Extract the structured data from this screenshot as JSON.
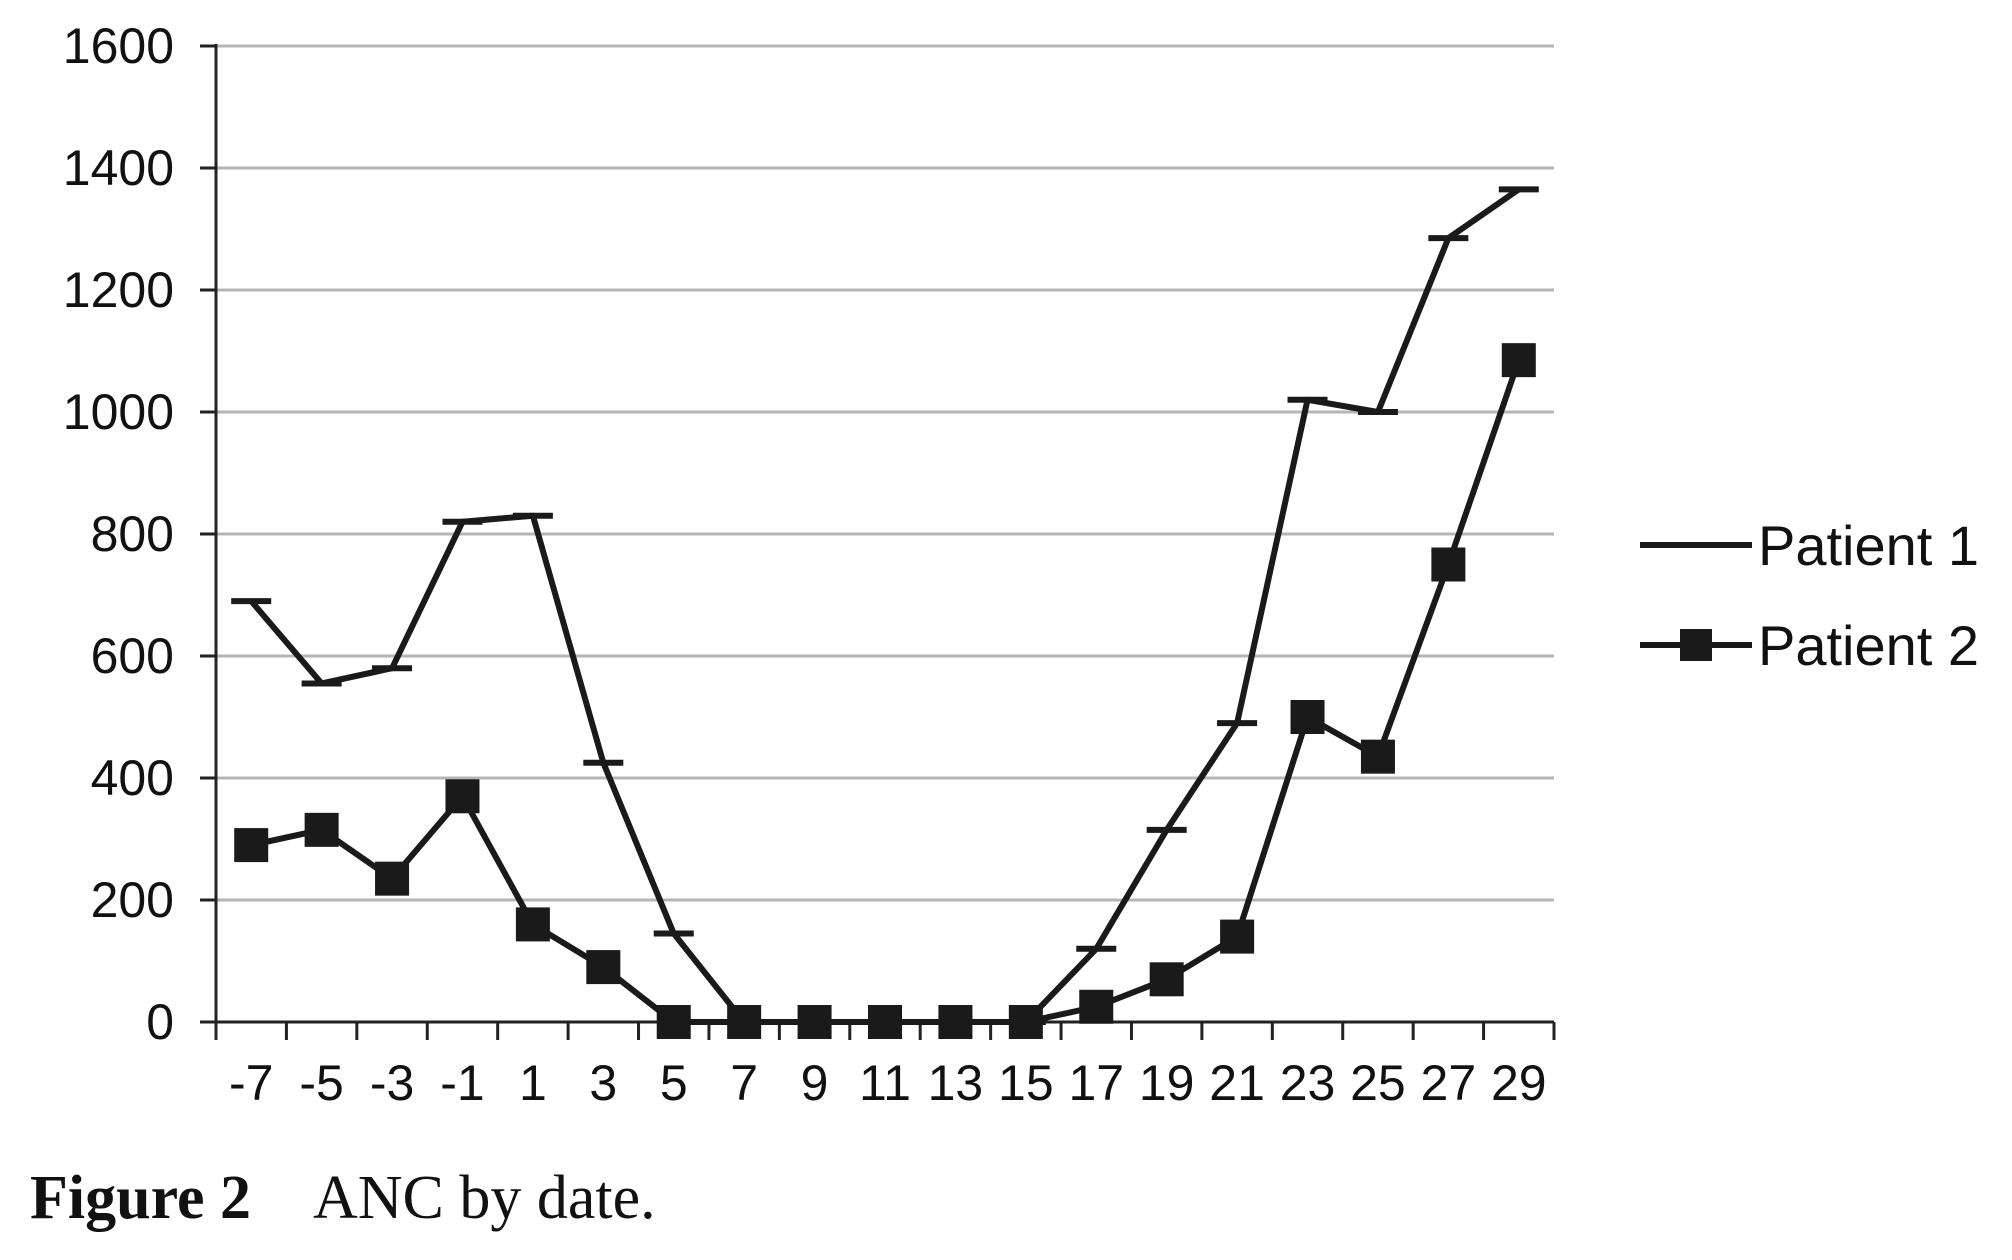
{
  "caption": {
    "label": "Figure 2",
    "text": "ANC by date."
  },
  "chart_data": {
    "type": "line",
    "title": "",
    "xlabel": "",
    "ylabel": "",
    "x": [
      -7,
      -5,
      -3,
      -1,
      1,
      3,
      5,
      7,
      9,
      11,
      13,
      15,
      17,
      19,
      21,
      23,
      25,
      27,
      29
    ],
    "x_tick_labels": [
      "-7",
      "-5",
      "-3",
      "-1",
      "1",
      "3",
      "5",
      "7",
      "9",
      "11",
      "13",
      "15",
      "17",
      "19",
      "21",
      "23",
      "25",
      "27",
      "29"
    ],
    "ylim": [
      0,
      1600
    ],
    "y_ticks": [
      0,
      200,
      400,
      600,
      800,
      1000,
      1200,
      1400,
      1600
    ],
    "y_tick_labels": [
      "0",
      "200",
      "400",
      "600",
      "800",
      "1000",
      "1200",
      "1400",
      "1600"
    ],
    "grid": "horizontal",
    "legend": "right",
    "series": [
      {
        "name": "Patient 1",
        "marker": "dash",
        "color": "#1a1a1a",
        "values": [
          690,
          555,
          580,
          820,
          830,
          425,
          145,
          0,
          0,
          0,
          0,
          0,
          120,
          315,
          490,
          1020,
          1000,
          1285,
          1365
        ]
      },
      {
        "name": "Patient 2",
        "marker": "square",
        "color": "#1a1a1a",
        "values": [
          290,
          315,
          235,
          370,
          160,
          90,
          0,
          0,
          0,
          0,
          0,
          0,
          25,
          70,
          140,
          500,
          435,
          750,
          1085
        ]
      }
    ]
  }
}
